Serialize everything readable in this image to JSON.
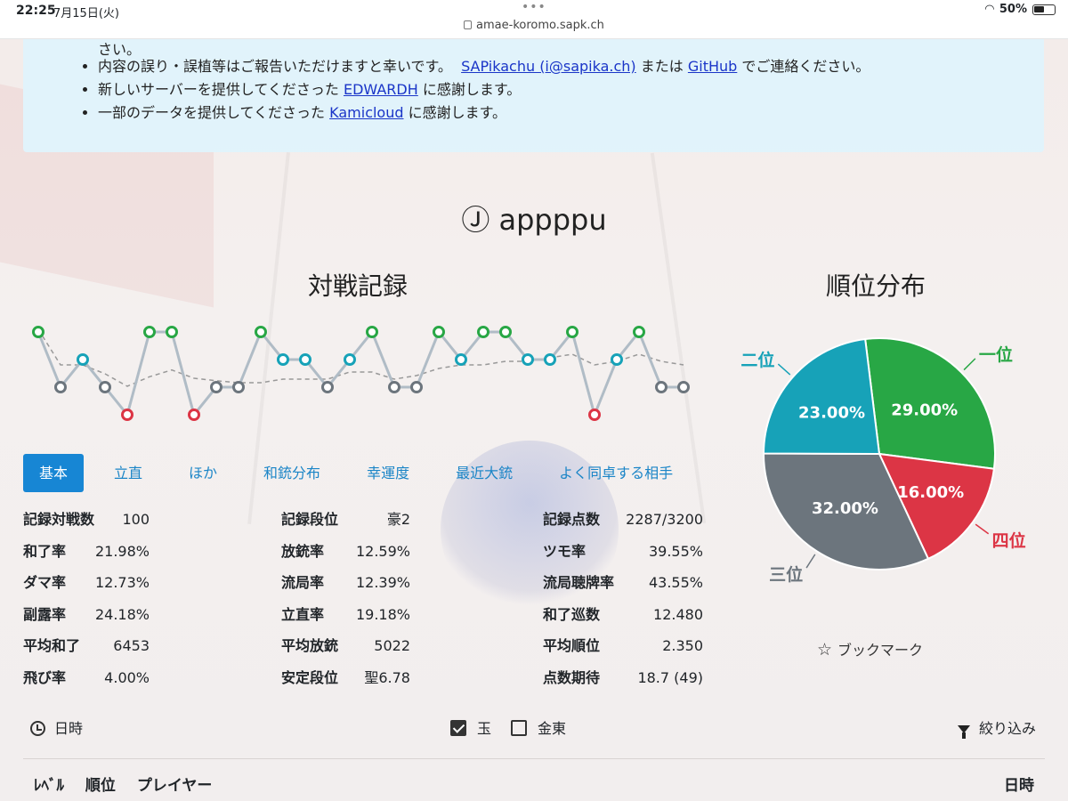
{
  "status": {
    "time": "22:25",
    "date": "7月15日(火)",
    "url": "amae-koromo.sapk.ch",
    "battery": "50%",
    "battery_level": 0.5
  },
  "notice": {
    "cut_text": "さい。",
    "items": [
      {
        "pre": "内容の誤り・誤植等はご報告いただけますと幸いです。",
        "link1": "SAPikachu (i@sapika.ch)",
        "mid": "または",
        "link2": "GitHub",
        "post": "でご連絡ください。"
      },
      {
        "pre": "新しいサーバーを提供してくださった",
        "link1": "EDWARDH",
        "post": "に感謝します。"
      },
      {
        "pre": "一部のデータを提供してくださった",
        "link1": "Kamicloud",
        "post": "に感謝します。"
      }
    ]
  },
  "player": {
    "name": "Ⓙ appppu"
  },
  "record_chart": {
    "title": "対戦記録",
    "ranks": [
      1,
      3,
      2,
      3,
      4,
      1,
      1,
      4,
      3,
      3,
      1,
      2,
      2,
      3,
      2,
      1,
      3,
      3,
      1,
      2,
      1,
      1,
      2,
      2,
      1,
      4,
      2,
      1,
      3,
      3
    ],
    "colors": {
      "1": "#28a745",
      "2": "#17a2b8",
      "3": "#6c757d",
      "4": "#dc3545"
    }
  },
  "pie": {
    "title": "順位分布",
    "chart_data": {
      "type": "pie",
      "labels": [
        "一位",
        "二位",
        "三位",
        "四位"
      ],
      "values": [
        29.0,
        23.0,
        32.0,
        16.0
      ],
      "value_labels": [
        "29.00%",
        "23.00%",
        "32.00%",
        "16.00%"
      ],
      "colors": [
        "#28a745",
        "#17a2b8",
        "#6c757d",
        "#dc3545"
      ]
    }
  },
  "tabs": [
    "基本",
    "立直",
    "ほか",
    "和銃分布",
    "幸運度",
    "最近大銃",
    "よく同卓する相手"
  ],
  "stats": {
    "col1": [
      {
        "label": "記録対戦数",
        "value": "100"
      },
      {
        "label": "和了率",
        "value": "21.98%"
      },
      {
        "label": "ダマ率",
        "value": "12.73%"
      },
      {
        "label": "副露率",
        "value": "24.18%"
      },
      {
        "label": "平均和了",
        "value": "6453"
      },
      {
        "label": "飛び率",
        "value": "4.00%"
      }
    ],
    "col2": [
      {
        "label": "記録段位",
        "value": "豪2"
      },
      {
        "label": "放銃率",
        "value": "12.59%"
      },
      {
        "label": "流局率",
        "value": "12.39%"
      },
      {
        "label": "立直率",
        "value": "19.18%"
      },
      {
        "label": "平均放銃",
        "value": "5022"
      },
      {
        "label": "安定段位",
        "value": "聖6.78"
      }
    ],
    "col3": [
      {
        "label": "記録点数",
        "value": "2287/3200"
      },
      {
        "label": "ツモ率",
        "value": "39.55%"
      },
      {
        "label": "流局聴牌率",
        "value": "43.55%"
      },
      {
        "label": "和了巡数",
        "value": "12.480"
      },
      {
        "label": "平均順位",
        "value": "2.350"
      },
      {
        "label": "点数期待",
        "value": "18.7 (49)"
      }
    ]
  },
  "bookmark": {
    "star": "☆",
    "label": "ブックマーク"
  },
  "filters": {
    "date_label": "日時",
    "check1": {
      "label": "玉",
      "checked": true
    },
    "check2": {
      "label": "金東",
      "checked": false
    },
    "filter_label": "絞り込み"
  },
  "table": {
    "headers": [
      "ﾚﾍﾞﾙ",
      "順位",
      "プレイヤー"
    ],
    "date_header": "日時"
  }
}
